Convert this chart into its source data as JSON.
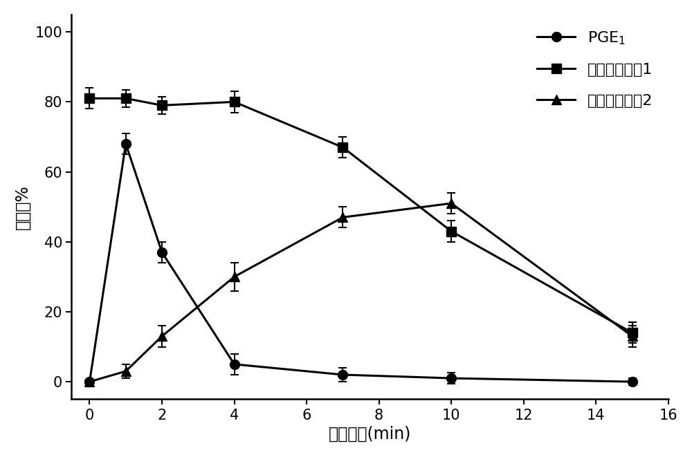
{
  "x": [
    0,
    1,
    2,
    4,
    7,
    10,
    15
  ],
  "pge1_y": [
    0,
    68,
    37,
    5,
    2,
    1,
    0
  ],
  "pge1_err": [
    0,
    3,
    3,
    3,
    2,
    1.5,
    1
  ],
  "compound1_y": [
    81,
    81,
    79,
    80,
    67,
    43,
    14
  ],
  "compound1_err": [
    3,
    2.5,
    2.5,
    3,
    3,
    3,
    3
  ],
  "compound2_y": [
    0,
    3,
    13,
    30,
    47,
    51,
    13
  ],
  "compound2_err": [
    0,
    2,
    3,
    4,
    3,
    3,
    3
  ],
  "xlabel": "孵育时间(min)",
  "ylabel": "抑制率%",
  "legend_compound1": "实施例化合甩1",
  "legend_compound2": "实施例化合甩2",
  "xlim": [
    -0.5,
    16
  ],
  "ylim": [
    -5,
    105
  ],
  "xticks": [
    0,
    2,
    4,
    6,
    8,
    10,
    12,
    14,
    16
  ],
  "yticks": [
    0,
    20,
    40,
    60,
    80,
    100
  ],
  "line_color": "#000000",
  "bg_color": "#ffffff",
  "fontsize_label": 17,
  "fontsize_tick": 15,
  "fontsize_legend": 16,
  "linewidth": 2.2,
  "markersize": 10,
  "capsize": 4
}
